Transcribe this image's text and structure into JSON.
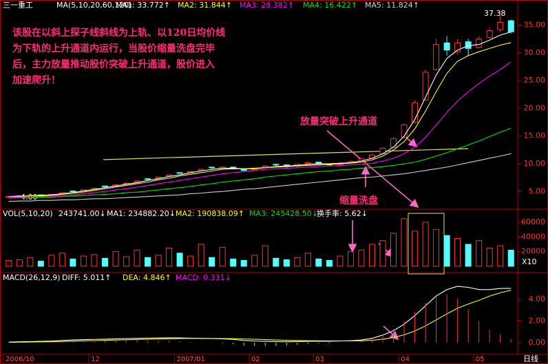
{
  "chart_data": [
    {
      "type": "candlestick",
      "stock": "三一重工",
      "indicator": "MA(5,10,20,60,120)",
      "categories": [
        "2006/10",
        null,
        null,
        null,
        null,
        null,
        null,
        null,
        "12",
        null,
        null,
        null,
        null,
        null,
        null,
        null,
        "2007/01",
        null,
        null,
        null,
        null,
        null,
        null,
        "02",
        null,
        null,
        null,
        null,
        null,
        "03",
        null,
        null,
        null,
        null,
        null,
        null,
        null,
        "04",
        null,
        null,
        null,
        null,
        null,
        null,
        "05",
        null,
        null,
        null
      ],
      "open": [
        4.0,
        4.1,
        4.2,
        4.4,
        4.3,
        4.6,
        5.1,
        5.1,
        5.4,
        6.0,
        6.0,
        6.4,
        6.7,
        7.3,
        7.4,
        7.8,
        8.4,
        8.4,
        8.8,
        9.4,
        9.2,
        9.4,
        9.0,
        8.9,
        9.4,
        9.9,
        9.8,
        9.6,
        10.0,
        10.3,
        10.0,
        9.9,
        10.2,
        10.5,
        11.0,
        11.8,
        13.0,
        14.8,
        17.5,
        21.5,
        27.0,
        31.8,
        30.2,
        32.0,
        31.0,
        32.8,
        34.2,
        35.8
      ],
      "high": [
        4.2,
        4.3,
        4.4,
        4.5,
        4.6,
        4.9,
        5.2,
        5.4,
        5.7,
        6.1,
        6.3,
        6.6,
        7.0,
        7.4,
        7.7,
        8.1,
        8.5,
        8.7,
        9.1,
        9.5,
        9.6,
        9.5,
        9.1,
        9.3,
        9.8,
        10.0,
        9.9,
        10.0,
        10.4,
        10.4,
        10.1,
        10.3,
        10.6,
        11.1,
        11.8,
        13.0,
        14.8,
        17.3,
        21.5,
        27.0,
        32.5,
        33.0,
        32.5,
        32.5,
        33.0,
        34.5,
        37.38,
        36.0
      ],
      "low": [
        3.9,
        4.0,
        4.1,
        4.1,
        4.2,
        4.5,
        4.9,
        5.0,
        5.3,
        5.8,
        5.9,
        6.3,
        6.6,
        7.1,
        7.3,
        7.7,
        8.2,
        8.3,
        8.7,
        9.1,
        9.1,
        9.0,
        8.6,
        8.7,
        9.3,
        9.6,
        9.3,
        9.4,
        9.9,
        9.9,
        9.6,
        9.8,
        10.1,
        10.4,
        10.9,
        11.7,
        12.9,
        14.6,
        17.3,
        21.3,
        26.8,
        29.5,
        29.8,
        29.5,
        30.8,
        32.6,
        33.8,
        33.5
      ],
      "close": [
        4.1,
        4.2,
        4.3,
        4.2,
        4.5,
        4.8,
        5.0,
        5.3,
        5.6,
        5.9,
        6.2,
        6.5,
        6.9,
        7.2,
        7.6,
        8.0,
        8.3,
        8.6,
        9.0,
        9.3,
        9.4,
        9.1,
        8.8,
        9.2,
        9.6,
        9.8,
        9.5,
        9.9,
        10.2,
        10.0,
        9.8,
        10.1,
        10.4,
        10.9,
        11.6,
        12.8,
        14.5,
        17.0,
        21.0,
        26.5,
        31.5,
        30.5,
        31.8,
        30.8,
        32.5,
        34.0,
        35.5,
        33.8
      ],
      "up_color": "#ff3232",
      "down_color": "#54fcfc",
      "series": [
        {
          "name": "MA1: 33.772↑",
          "color": "#ffffff",
          "values": [
            4.1,
            4.2,
            4.2,
            4.3,
            4.4,
            4.6,
            4.8,
            5.1,
            5.4,
            5.7,
            6.0,
            6.3,
            6.6,
            7.0,
            7.3,
            7.7,
            8.0,
            8.4,
            8.7,
            9.0,
            9.2,
            9.2,
            9.1,
            9.1,
            9.3,
            9.5,
            9.6,
            9.7,
            9.9,
            10.0,
            10.0,
            10.1,
            10.2,
            10.5,
            11.0,
            11.8,
            13.0,
            15.0,
            18.0,
            22.0,
            26.0,
            29.0,
            30.5,
            31.3,
            31.5,
            32.3,
            33.2,
            33.772
          ]
        },
        {
          "name": "MA2: 31.844↑",
          "color": "#ffff00",
          "values": [
            4.1,
            4.1,
            4.2,
            4.2,
            4.3,
            4.5,
            4.7,
            4.9,
            5.2,
            5.5,
            5.8,
            6.1,
            6.4,
            6.7,
            7.1,
            7.4,
            7.8,
            8.1,
            8.4,
            8.7,
            9.0,
            9.1,
            9.1,
            9.2,
            9.3,
            9.4,
            9.5,
            9.6,
            9.7,
            9.8,
            9.9,
            10.0,
            10.1,
            10.3,
            10.7,
            11.4,
            12.5,
            14.0,
            16.3,
            19.5,
            23.0,
            26.3,
            28.5,
            29.5,
            30.2,
            30.8,
            31.4,
            31.844
          ]
        },
        {
          "name": "MA3: 28.382↑",
          "color": "#ff00ff",
          "values": [
            4.0,
            4.0,
            4.1,
            4.1,
            4.2,
            4.3,
            4.4,
            4.6,
            4.8,
            5.0,
            5.3,
            5.5,
            5.8,
            6.1,
            6.4,
            6.7,
            7.0,
            7.3,
            7.6,
            7.9,
            8.2,
            8.4,
            8.6,
            8.8,
            9.0,
            9.1,
            9.2,
            9.3,
            9.4,
            9.5,
            9.6,
            9.7,
            9.8,
            9.9,
            10.1,
            10.5,
            11.0,
            11.8,
            13.0,
            14.8,
            17.0,
            19.3,
            21.3,
            23.0,
            24.5,
            25.8,
            27.0,
            28.382
          ]
        },
        {
          "name": "MA4: 16.422↑",
          "color": "#00e600",
          "values": [
            3.8,
            3.9,
            3.9,
            4.0,
            4.0,
            4.1,
            4.2,
            4.3,
            4.4,
            4.5,
            4.6,
            4.8,
            4.9,
            5.1,
            5.3,
            5.5,
            5.7,
            5.9,
            6.2,
            6.4,
            6.7,
            6.9,
            7.1,
            7.3,
            7.6,
            7.8,
            8.0,
            8.2,
            8.4,
            8.6,
            8.7,
            8.9,
            9.0,
            9.2,
            9.3,
            9.5,
            9.7,
            10.0,
            10.3,
            10.8,
            11.4,
            12.0,
            12.7,
            13.4,
            14.1,
            14.9,
            15.7,
            16.422
          ]
        },
        {
          "name": "MA5: 11.824↑",
          "color": "#d0d0d0",
          "values": [
            3.2,
            3.3,
            3.3,
            3.4,
            3.4,
            3.5,
            3.5,
            3.6,
            3.7,
            3.7,
            3.8,
            3.9,
            4.0,
            4.1,
            4.2,
            4.3,
            4.4,
            4.6,
            4.7,
            4.9,
            5.0,
            5.2,
            5.4,
            5.5,
            5.7,
            5.9,
            6.1,
            6.3,
            6.5,
            6.7,
            6.9,
            7.1,
            7.3,
            7.5,
            7.6,
            7.8,
            8.0,
            8.2,
            8.5,
            8.8,
            9.1,
            9.4,
            9.8,
            10.2,
            10.6,
            11.0,
            11.4,
            11.824
          ]
        }
      ],
      "ylim": [
        1.94,
        39.53
      ],
      "yticks": [
        {
          "value": 5,
          "label": "5.00"
        },
        {
          "value": 10,
          "label": "10.00"
        },
        {
          "value": 15,
          "label": "15.00"
        },
        {
          "value": 20,
          "label": "20.00"
        },
        {
          "value": 25,
          "label": "25.00"
        },
        {
          "value": 30,
          "label": "30.00"
        },
        {
          "value": 35,
          "label": "35.00"
        }
      ],
      "max_label": "37.38",
      "min_label": "4.00",
      "notes": [
        "该股在以斜上探子线斜线为上轨、以120日均价线",
        "为下轨的上升通道内运行，当股价缩量洗盘完毕",
        "后，主力放量推动股价突破上升通道，股价进入",
        "加速爬升！"
      ],
      "callouts": [
        "放量突破上升通道",
        "缩量洗盘"
      ],
      "period": "日线"
    },
    {
      "type": "bar",
      "indicator": "VOL(5,10,20)",
      "legend": [
        {
          "text": "243741.00↓",
          "color": "#ffffff"
        },
        {
          "text": "MA1: 234882.20↓",
          "color": "#ffffff"
        },
        {
          "text": "MA2: 190838.09↑",
          "color": "#ffff00"
        },
        {
          "text": "MA3: 245428.50↓",
          "color": "#00e600"
        },
        {
          "text": "换手率: 5.62↓",
          "color": "#ffffff"
        }
      ],
      "values": [
        8000,
        9000,
        12000,
        7000,
        15000,
        18000,
        10000,
        14000,
        16000,
        11000,
        20000,
        13000,
        22000,
        12000,
        15000,
        25000,
        18000,
        14000,
        30000,
        12000,
        26000,
        10000,
        8000,
        15000,
        28000,
        11000,
        9000,
        12000,
        18000,
        10000,
        8000,
        14000,
        20000,
        22000,
        30000,
        35000,
        45000,
        65000,
        48000,
        60000,
        50000,
        42000,
        38000,
        30000,
        35000,
        25000,
        28000,
        22000
      ],
      "ylim": [
        0,
        76000
      ],
      "yticks": [
        20000,
        40000,
        60000
      ],
      "unit": "X10"
    },
    {
      "type": "macd",
      "indicator": "MACD(26,12,9)",
      "series": [
        {
          "name": "DIFF: 5.011↑",
          "color": "#ffffff",
          "values": [
            0.05,
            0.08,
            0.1,
            0.12,
            0.15,
            0.2,
            0.25,
            0.28,
            0.3,
            0.32,
            0.35,
            0.38,
            0.4,
            0.42,
            0.43,
            0.45,
            0.44,
            0.42,
            0.4,
            0.38,
            0.35,
            0.3,
            0.2,
            0.15,
            0.12,
            0.1,
            0.08,
            0.1,
            0.12,
            0.14,
            0.13,
            0.15,
            0.18,
            0.25,
            0.4,
            0.7,
            1.1,
            1.7,
            2.5,
            3.4,
            4.3,
            4.9,
            5.2,
            5.1,
            4.9,
            4.9,
            5.0,
            5.011
          ]
        },
        {
          "name": "DEA: 4.846↑",
          "color": "#ffff00",
          "values": [
            0.03,
            0.04,
            0.06,
            0.07,
            0.09,
            0.11,
            0.14,
            0.17,
            0.19,
            0.22,
            0.24,
            0.27,
            0.29,
            0.32,
            0.34,
            0.36,
            0.38,
            0.39,
            0.39,
            0.39,
            0.38,
            0.37,
            0.34,
            0.31,
            0.28,
            0.25,
            0.22,
            0.2,
            0.18,
            0.17,
            0.16,
            0.16,
            0.16,
            0.18,
            0.22,
            0.32,
            0.48,
            0.72,
            1.08,
            1.55,
            2.1,
            2.66,
            3.17,
            3.56,
            3.9,
            4.3,
            4.6,
            4.846
          ]
        },
        {
          "name": "MACD: 0.331↓",
          "color": "#ff00ff",
          "style": "bar",
          "up_color": "#ff3232",
          "down_color": "#54fcfc",
          "values": [
            0.04,
            0.08,
            0.08,
            0.1,
            0.12,
            0.18,
            0.22,
            0.22,
            0.22,
            0.2,
            0.22,
            0.22,
            0.22,
            0.2,
            0.18,
            0.18,
            0.12,
            0.06,
            0.02,
            -0.02,
            -0.06,
            -0.14,
            -0.28,
            -0.32,
            -0.32,
            -0.3,
            -0.28,
            -0.2,
            -0.12,
            -0.06,
            -0.06,
            -0.02,
            0.04,
            0.14,
            0.36,
            0.76,
            1.24,
            1.96,
            2.84,
            3.7,
            4.4,
            4.48,
            4.06,
            3.08,
            2.0,
            1.2,
            0.8,
            0.331
          ]
        }
      ],
      "ylim": [
        -1.08,
        6.41
      ],
      "yticks": [
        {
          "value": 0,
          "label": "0.00"
        },
        {
          "value": 2,
          "label": "2.00"
        },
        {
          "value": 4,
          "label": "4.00"
        }
      ]
    }
  ]
}
